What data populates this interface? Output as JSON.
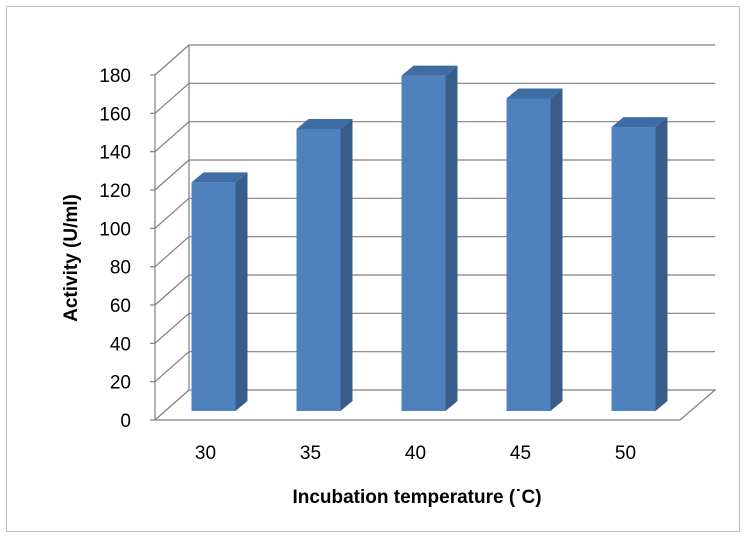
{
  "chart_data": {
    "type": "bar",
    "style": "3d-column",
    "categories": [
      "30",
      "35",
      "40",
      "45",
      "50"
    ],
    "values": [
      120,
      148,
      176,
      164,
      149
    ],
    "xlabel": "Incubation temperature (˙C)",
    "ylabel": "Activity (U/ml)",
    "ylim": [
      0,
      180
    ],
    "yticks": [
      "0",
      "20",
      "40",
      "60",
      "80",
      "100",
      "120",
      "140",
      "160",
      "180"
    ],
    "grid": true,
    "legend": "none",
    "colors": {
      "bar_front": "#4f81bd",
      "bar_side": "#385d8a",
      "bar_top": "#3e6ca3",
      "grid": "#7f7f7f"
    }
  }
}
